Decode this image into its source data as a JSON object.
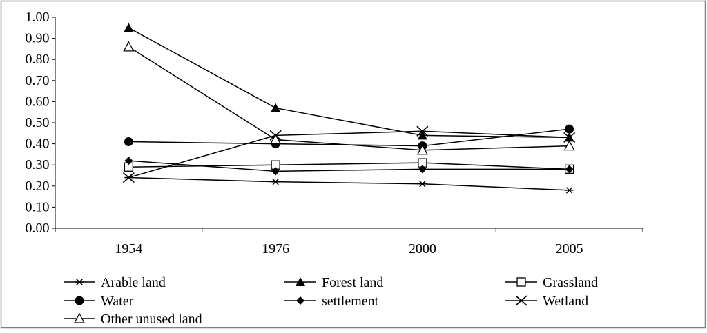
{
  "chart_data": {
    "type": "line",
    "title": "",
    "xlabel": "",
    "ylabel": "",
    "categories": [
      "1954",
      "1976",
      "2000",
      "2005"
    ],
    "ylim": [
      0,
      1
    ],
    "yticks": [
      "0.00",
      "0.10",
      "0.20",
      "0.30",
      "0.40",
      "0.50",
      "0.60",
      "0.70",
      "0.80",
      "0.90",
      "1.00"
    ],
    "grid": false,
    "legend_position": "bottom",
    "series": [
      {
        "name": "Arable land",
        "marker": "asterisk",
        "values": [
          0.24,
          0.22,
          0.21,
          0.18
        ]
      },
      {
        "name": "Forest land",
        "marker": "filled-triangle",
        "values": [
          0.95,
          0.57,
          0.44,
          0.43
        ]
      },
      {
        "name": "Grassland",
        "marker": "open-square",
        "values": [
          0.29,
          0.3,
          0.31,
          0.28
        ]
      },
      {
        "name": "Water",
        "marker": "filled-circle",
        "values": [
          0.41,
          0.4,
          0.39,
          0.47
        ]
      },
      {
        "name": "settlement",
        "marker": "filled-diamond",
        "values": [
          0.32,
          0.27,
          0.28,
          0.28
        ]
      },
      {
        "name": "Wetland",
        "marker": "x-cross",
        "values": [
          0.24,
          0.44,
          0.46,
          0.43
        ]
      },
      {
        "name": "Other unused land",
        "marker": "open-triangle",
        "values": [
          0.86,
          0.42,
          0.37,
          0.39
        ]
      }
    ],
    "colors": {
      "line": "#000000",
      "background": "#ffffff",
      "frame": "#7f7f7f"
    }
  }
}
